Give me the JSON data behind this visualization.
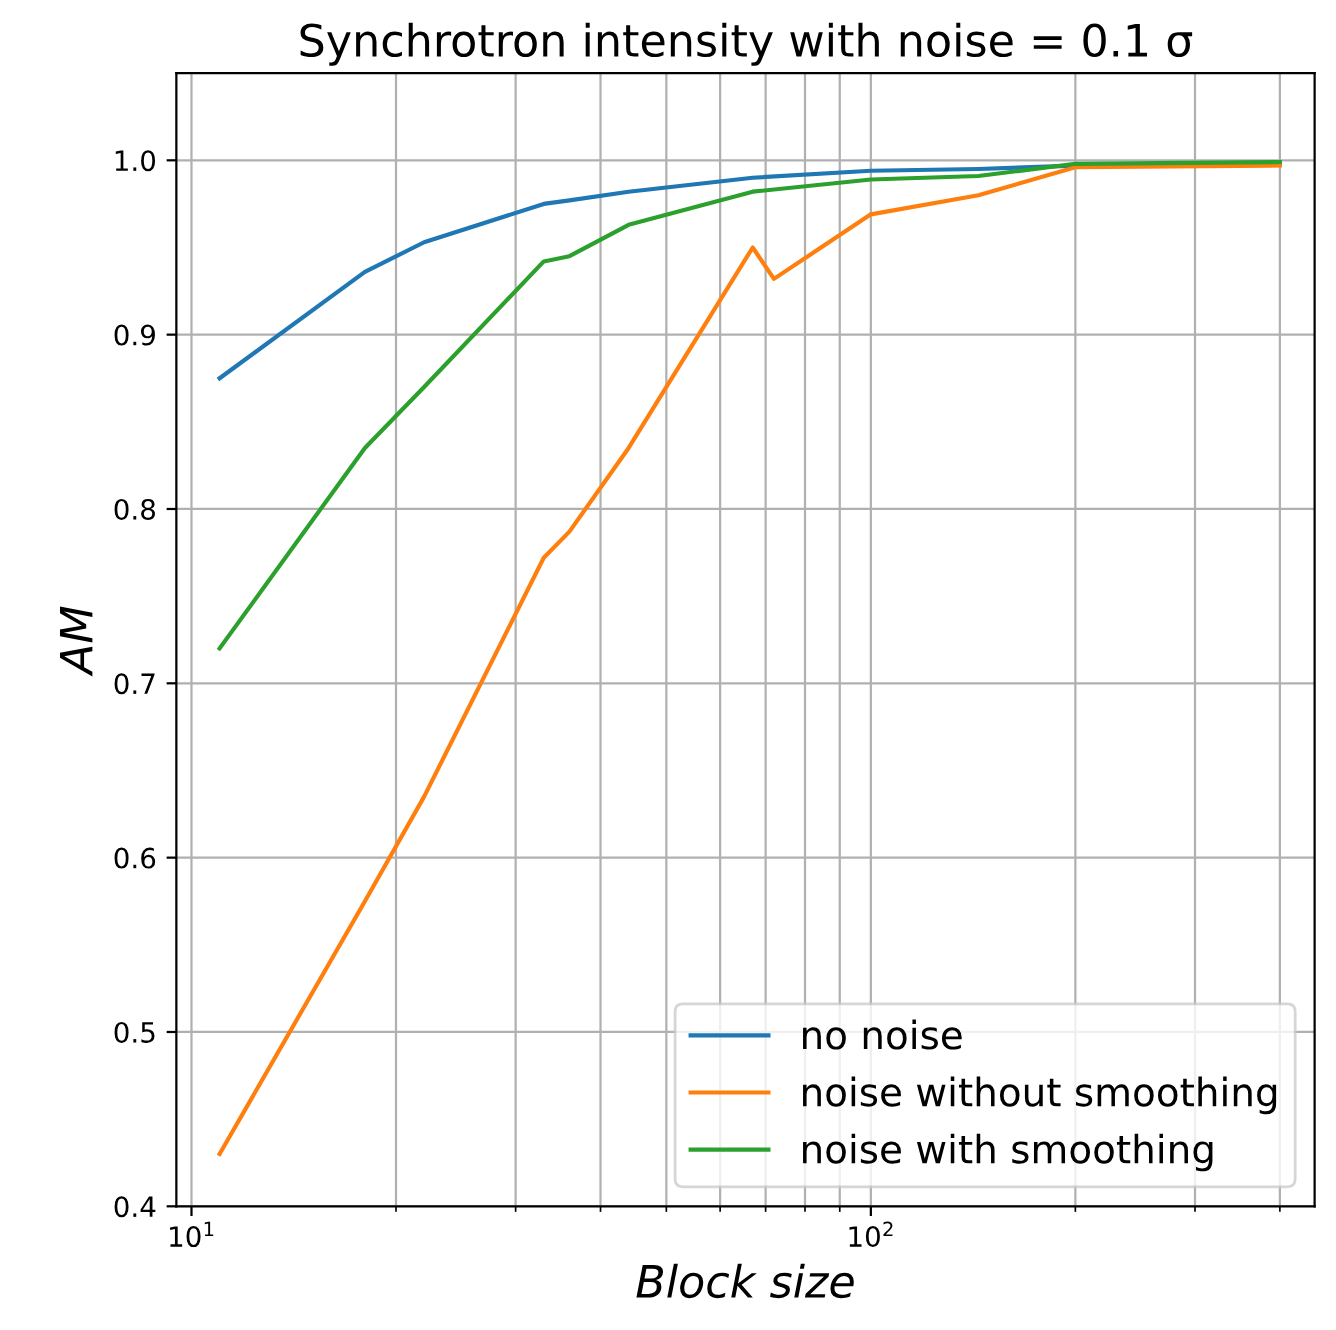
{
  "chart_data": {
    "type": "line",
    "title": "Synchrotron intensity with noise = 0.1 σ",
    "xlabel": "Block size",
    "ylabel": "AM",
    "log": "x",
    "grid": true,
    "legend": "bottom right",
    "xlim": [
      9.5,
      450
    ],
    "ylim": [
      0.4,
      1.05
    ],
    "xticks": [
      {
        "value": 10,
        "label": "10$^{1}$"
      },
      {
        "value": 20,
        "label": null
      },
      {
        "value": 30,
        "label": null
      },
      {
        "value": 40,
        "label": null
      },
      {
        "value": 50,
        "label": null
      },
      {
        "value": 60,
        "label": null
      },
      {
        "value": 70,
        "label": null
      },
      {
        "value": 80,
        "label": null
      },
      {
        "value": 90,
        "label": null
      },
      {
        "value": 100,
        "label": "10$^{2}$"
      },
      {
        "value": 200,
        "label": null
      },
      {
        "value": 300,
        "label": null
      },
      {
        "value": 400,
        "label": null
      }
    ],
    "yticks": [
      0.4,
      0.5,
      0.6,
      0.7,
      0.8,
      0.9,
      {
        "value": 1,
        "label": "1.0"
      }
    ],
    "series": [
      {
        "name": "no noise",
        "color": "#1f77b4",
        "x": [
          11,
          18,
          22,
          33,
          36,
          44,
          67,
          100,
          144,
          200,
          400
        ],
        "values": [
          0.875,
          0.936,
          0.953,
          0.975,
          0.977,
          0.982,
          0.99,
          0.994,
          0.995,
          0.997,
          0.998
        ]
      },
      {
        "name": "noise without smoothing",
        "color": "#ff7f0e",
        "x": [
          11,
          18,
          22,
          33,
          36,
          44,
          67,
          72,
          100,
          144,
          200,
          400
        ],
        "values": [
          0.43,
          0.575,
          0.635,
          0.772,
          0.787,
          0.835,
          0.95,
          0.932,
          0.969,
          0.98,
          0.996,
          0.997
        ]
      },
      {
        "name": "noise with smoothing",
        "color": "#2ca02c",
        "x": [
          11,
          18,
          22,
          33,
          36,
          44,
          67,
          100,
          144,
          200,
          400
        ],
        "values": [
          0.72,
          0.835,
          0.87,
          0.942,
          0.945,
          0.963,
          0.982,
          0.989,
          0.991,
          0.998,
          0.999
        ]
      }
    ]
  }
}
